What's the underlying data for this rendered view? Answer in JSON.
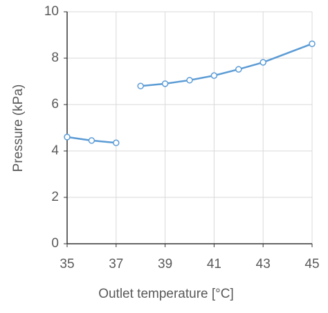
{
  "chart_data": {
    "type": "line",
    "x_label": "Outlet temperature [°C]",
    "y_label": "Pressure (kPa)",
    "series": [
      {
        "color": "#5b9bd5",
        "x": [
          35,
          36,
          37
        ],
        "values": [
          4.6,
          4.45,
          4.35
        ]
      },
      {
        "color": "#5b9bd5",
        "x": [
          38,
          39,
          40,
          41,
          42,
          43,
          45
        ],
        "values": [
          6.8,
          6.9,
          7.05,
          7.25,
          7.52,
          7.82,
          8.62
        ]
      }
    ],
    "xlim": [
      35,
      45
    ],
    "xticks": [
      35,
      37,
      39,
      41,
      43,
      45
    ],
    "ylim": [
      0,
      10
    ],
    "yticks": [
      0,
      2,
      4,
      6,
      8,
      10
    ],
    "grid": true
  }
}
